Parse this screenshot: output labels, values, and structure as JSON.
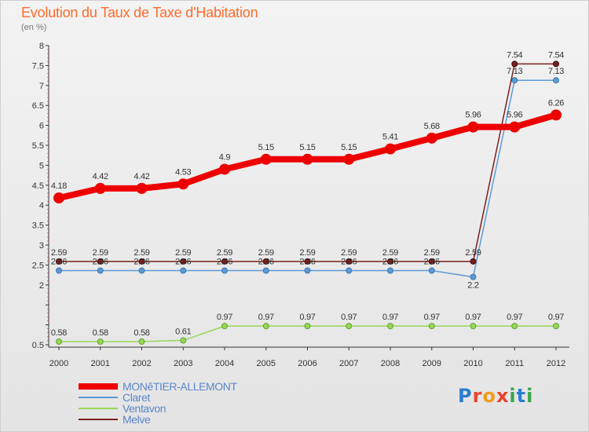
{
  "title": "Evolution du Taux de Taxe d'Habitation",
  "subtitle": "(en %)",
  "logo": {
    "letters": [
      "P",
      "r",
      "o",
      "x",
      "i",
      "t",
      "i"
    ],
    "colors": [
      "#2a7dd1",
      "#e8442e",
      "#f29b1d",
      "#e8442e",
      "#3aa64b",
      "#2a7dd1",
      "#3aa64b"
    ]
  },
  "chart_data": {
    "type": "line",
    "title": "Evolution du Taux de Taxe d'Habitation",
    "ylabel": "(en %)",
    "xlabel": "",
    "x": [
      "2000",
      "2001",
      "2002",
      "2003",
      "2004",
      "2005",
      "2006",
      "2007",
      "2008",
      "2009",
      "2010",
      "2011",
      "2012"
    ],
    "ylim": [
      0.5,
      8
    ],
    "yticks": [
      0.5,
      1,
      1.5,
      2,
      2.5,
      3,
      3.5,
      4,
      4.5,
      5,
      5.5,
      6,
      6.5,
      7,
      7.5,
      8
    ],
    "ytick_labels": [
      "0.5",
      "",
      "",
      "2",
      "2.5",
      "3",
      "3.5",
      "4",
      "4.5",
      "5",
      "5.5",
      "6",
      "6.5",
      "7",
      "7.5",
      "8"
    ],
    "grid": false,
    "legend_position": "bottom-left",
    "series": [
      {
        "name": "MONêTIER-ALLEMONT",
        "color": "#ee0000",
        "width": 8,
        "marker": 7,
        "values": [
          4.18,
          4.42,
          4.42,
          4.53,
          4.9,
          5.15,
          5.15,
          5.15,
          5.41,
          5.68,
          5.96,
          5.96,
          6.26
        ],
        "labels": [
          "4.18",
          "4.42",
          "4.42",
          "4.53",
          "4.9",
          "5.15",
          "5.15",
          "5.15",
          "5.41",
          "5.68",
          "5.96",
          "5.96",
          "6.26"
        ]
      },
      {
        "name": "Claret",
        "color": "#5b9bd5",
        "width": 1.5,
        "marker": 3.5,
        "values": [
          2.36,
          2.36,
          2.36,
          2.36,
          2.36,
          2.36,
          2.36,
          2.36,
          2.36,
          2.36,
          2.2,
          7.13,
          7.13
        ],
        "labels": [
          "2.36",
          "2.36",
          "2.36",
          "2.36",
          "2.36",
          "2.36",
          "2.36",
          "2.36",
          "2.36",
          "2.36",
          "2.2",
          "7.13",
          "7.13"
        ]
      },
      {
        "name": "Ventavon",
        "color": "#99d65a",
        "width": 1.5,
        "marker": 3.5,
        "values": [
          0.58,
          0.58,
          0.58,
          0.61,
          0.97,
          0.97,
          0.97,
          0.97,
          0.97,
          0.97,
          0.97,
          0.97,
          0.97
        ],
        "labels": [
          "0.58",
          "0.58",
          "0.58",
          "0.61",
          "0.97",
          "0.97",
          "0.97",
          "0.97",
          "0.97",
          "0.97",
          "0.97",
          "0.97",
          "0.97"
        ]
      },
      {
        "name": "Melve",
        "color": "#7a1f1f",
        "width": 1.5,
        "marker": 3.5,
        "values": [
          2.59,
          2.59,
          2.59,
          2.59,
          2.59,
          2.59,
          2.59,
          2.59,
          2.59,
          2.59,
          2.59,
          7.54,
          7.54
        ],
        "labels": [
          "2.59",
          "2.59",
          "2.59",
          "2.59",
          "2.59",
          "2.59",
          "2.59",
          "2.59",
          "2.59",
          "2.59",
          "2.59",
          "7.54",
          "7.54"
        ]
      }
    ]
  }
}
